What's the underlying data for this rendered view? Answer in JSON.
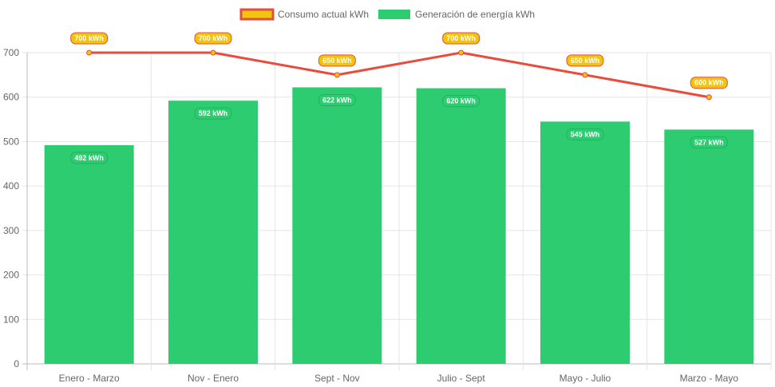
{
  "chart_data": {
    "type": "bar+line",
    "categories": [
      "Enero - Marzo",
      "Nov - Enero",
      "Sept - Nov",
      "Julio - Sept",
      "Mayo - Julio",
      "Marzo - Mayo"
    ],
    "series": [
      {
        "name": "Consumo actual kWh",
        "type": "line",
        "values": [
          700,
          700,
          650,
          700,
          650,
          600
        ],
        "color": "#e74c3c",
        "fill": "#f1c40f",
        "labels": [
          "700 kWh",
          "700 kWh",
          "650 kWh",
          "700 kWh",
          "650 kWh",
          "600 kWh"
        ]
      },
      {
        "name": "Generación de energía kWh",
        "type": "bar",
        "values": [
          492,
          592,
          622,
          620,
          545,
          527
        ],
        "color": "#2ecc71",
        "labels": [
          "492 kWh",
          "592 kWh",
          "622 kWh",
          "620 kWh",
          "545 kWh",
          "527 kWh"
        ]
      }
    ],
    "yticks": [
      "0",
      "100",
      "200",
      "300",
      "400",
      "500",
      "600",
      "700"
    ],
    "ylim": [
      0,
      700
    ],
    "grid": true,
    "legend": "top"
  }
}
